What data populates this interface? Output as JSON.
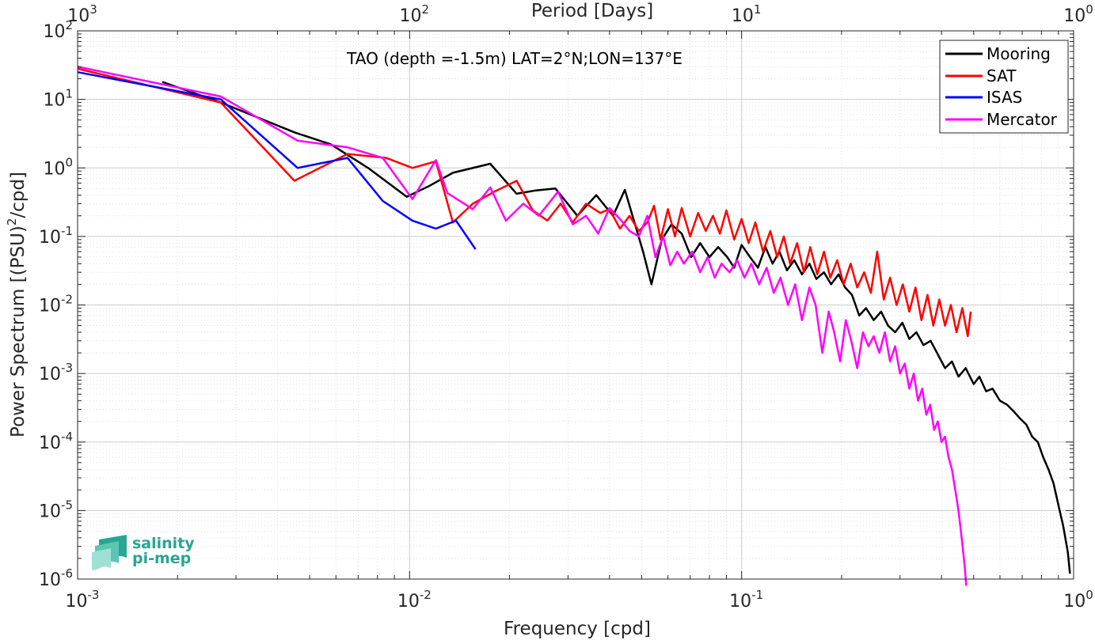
{
  "chart_data": {
    "type": "line",
    "title": "TAO (depth =-1.5m) LAT=2°N;LON=137°E",
    "xlabel": "Frequency [cpd]",
    "ylabel_parts": [
      "Power Spectrum [(PSU)",
      "2",
      "/cpd]"
    ],
    "top_xlabel": "Period [Days]",
    "xscale": "log",
    "yscale": "log",
    "xlim": [
      0.001,
      1
    ],
    "ylim": [
      1e-06,
      100
    ],
    "grid": true,
    "minor_grid": true,
    "legend_position": "top-right",
    "x_ticks": [
      {
        "base": "10",
        "exp": "-3"
      },
      {
        "base": "10",
        "exp": "-2"
      },
      {
        "base": "10",
        "exp": "-1"
      },
      {
        "base": "10",
        "exp": "0"
      }
    ],
    "top_ticks": [
      {
        "base": "10",
        "exp": "3"
      },
      {
        "base": "10",
        "exp": "2"
      },
      {
        "base": "10",
        "exp": "1"
      },
      {
        "base": "10",
        "exp": "0"
      }
    ],
    "y_ticks": [
      {
        "base": "10",
        "exp": "-6"
      },
      {
        "base": "10",
        "exp": "-5"
      },
      {
        "base": "10",
        "exp": "-4"
      },
      {
        "base": "10",
        "exp": "-3"
      },
      {
        "base": "10",
        "exp": "-2"
      },
      {
        "base": "10",
        "exp": "-1"
      },
      {
        "base": "10",
        "exp": "0"
      },
      {
        "base": "10",
        "exp": "1"
      },
      {
        "base": "10",
        "exp": "2"
      }
    ],
    "series": [
      {
        "name": "Mooring",
        "color": "#000000",
        "points": [
          [
            0.0018,
            18
          ],
          [
            0.0027,
            9
          ],
          [
            0.0045,
            3.3
          ],
          [
            0.0058,
            2.2
          ],
          [
            0.0075,
            1.0
          ],
          [
            0.0098,
            0.38
          ],
          [
            0.0115,
            0.55
          ],
          [
            0.0135,
            0.85
          ],
          [
            0.0175,
            1.15
          ],
          [
            0.021,
            0.42
          ],
          [
            0.024,
            0.47
          ],
          [
            0.0275,
            0.5
          ],
          [
            0.032,
            0.2
          ],
          [
            0.0365,
            0.4
          ],
          [
            0.041,
            0.2
          ],
          [
            0.0445,
            0.48
          ],
          [
            0.0505,
            0.06
          ],
          [
            0.0535,
            0.02
          ],
          [
            0.0575,
            0.09
          ],
          [
            0.0615,
            0.15
          ],
          [
            0.066,
            0.11
          ],
          [
            0.0705,
            0.05
          ],
          [
            0.075,
            0.08
          ],
          [
            0.08,
            0.05
          ],
          [
            0.085,
            0.07
          ],
          [
            0.0905,
            0.05
          ],
          [
            0.095,
            0.035
          ],
          [
            0.1,
            0.075
          ],
          [
            0.106,
            0.05
          ],
          [
            0.112,
            0.035
          ],
          [
            0.118,
            0.07
          ],
          [
            0.124,
            0.04
          ],
          [
            0.13,
            0.06
          ],
          [
            0.137,
            0.032
          ],
          [
            0.144,
            0.045
          ],
          [
            0.152,
            0.028
          ],
          [
            0.16,
            0.04
          ],
          [
            0.168,
            0.024
          ],
          [
            0.177,
            0.03
          ],
          [
            0.186,
            0.02
          ],
          [
            0.196,
            0.028
          ],
          [
            0.205,
            0.018
          ],
          [
            0.215,
            0.014
          ],
          [
            0.226,
            0.007
          ],
          [
            0.237,
            0.009
          ],
          [
            0.25,
            0.006
          ],
          [
            0.263,
            0.008
          ],
          [
            0.276,
            0.005
          ],
          [
            0.29,
            0.004
          ],
          [
            0.305,
            0.0055
          ],
          [
            0.32,
            0.0032
          ],
          [
            0.336,
            0.004
          ],
          [
            0.353,
            0.0026
          ],
          [
            0.371,
            0.003
          ],
          [
            0.39,
            0.0019
          ],
          [
            0.41,
            0.0012
          ],
          [
            0.43,
            0.0015
          ],
          [
            0.45,
            0.0009
          ],
          [
            0.473,
            0.0012
          ],
          [
            0.5,
            0.0007
          ],
          [
            0.52,
            0.0009
          ],
          [
            0.545,
            0.00055
          ],
          [
            0.57,
            0.0006
          ],
          [
            0.6,
            0.0004
          ],
          [
            0.63,
            0.00035
          ],
          [
            0.66,
            0.00028
          ],
          [
            0.69,
            0.00022
          ],
          [
            0.72,
            0.00018
          ],
          [
            0.75,
            0.00012
          ],
          [
            0.78,
            0.0001
          ],
          [
            0.81,
            6e-05
          ],
          [
            0.84,
            4e-05
          ],
          [
            0.87,
            2.5e-05
          ],
          [
            0.9,
            1.2e-05
          ],
          [
            0.93,
            6e-06
          ],
          [
            0.96,
            2.5e-06
          ],
          [
            0.975,
            1.2e-06
          ]
        ]
      },
      {
        "name": "SAT",
        "color": "#ff0000",
        "points": [
          [
            0.001,
            28
          ],
          [
            0.0027,
            9
          ],
          [
            0.0045,
            0.65
          ],
          [
            0.0065,
            1.6
          ],
          [
            0.0085,
            1.4
          ],
          [
            0.0102,
            1.0
          ],
          [
            0.012,
            1.25
          ],
          [
            0.0135,
            0.16
          ],
          [
            0.0155,
            0.3
          ],
          [
            0.018,
            0.45
          ],
          [
            0.021,
            0.65
          ],
          [
            0.0235,
            0.24
          ],
          [
            0.026,
            0.17
          ],
          [
            0.0285,
            0.3
          ],
          [
            0.031,
            0.16
          ],
          [
            0.034,
            0.3
          ],
          [
            0.0375,
            0.22
          ],
          [
            0.04,
            0.25
          ],
          [
            0.043,
            0.13
          ],
          [
            0.046,
            0.2
          ],
          [
            0.049,
            0.12
          ],
          [
            0.052,
            0.16
          ],
          [
            0.0545,
            0.28
          ],
          [
            0.057,
            0.09
          ],
          [
            0.06,
            0.25
          ],
          [
            0.063,
            0.1
          ],
          [
            0.066,
            0.26
          ],
          [
            0.07,
            0.1
          ],
          [
            0.074,
            0.22
          ],
          [
            0.078,
            0.12
          ],
          [
            0.082,
            0.2
          ],
          [
            0.086,
            0.11
          ],
          [
            0.09,
            0.24
          ],
          [
            0.095,
            0.09
          ],
          [
            0.1,
            0.18
          ],
          [
            0.105,
            0.08
          ],
          [
            0.11,
            0.16
          ],
          [
            0.116,
            0.06
          ],
          [
            0.122,
            0.12
          ],
          [
            0.128,
            0.05
          ],
          [
            0.134,
            0.1
          ],
          [
            0.14,
            0.04
          ],
          [
            0.147,
            0.08
          ],
          [
            0.154,
            0.03
          ],
          [
            0.161,
            0.07
          ],
          [
            0.169,
            0.028
          ],
          [
            0.177,
            0.06
          ],
          [
            0.185,
            0.025
          ],
          [
            0.194,
            0.045
          ],
          [
            0.203,
            0.02
          ],
          [
            0.213,
            0.04
          ],
          [
            0.223,
            0.018
          ],
          [
            0.234,
            0.03
          ],
          [
            0.245,
            0.015
          ],
          [
            0.256,
            0.06
          ],
          [
            0.268,
            0.012
          ],
          [
            0.28,
            0.025
          ],
          [
            0.293,
            0.01
          ],
          [
            0.306,
            0.02
          ],
          [
            0.32,
            0.008
          ],
          [
            0.334,
            0.018
          ],
          [
            0.348,
            0.006
          ],
          [
            0.363,
            0.014
          ],
          [
            0.378,
            0.005
          ],
          [
            0.394,
            0.012
          ],
          [
            0.41,
            0.005
          ],
          [
            0.427,
            0.01
          ],
          [
            0.444,
            0.004
          ],
          [
            0.462,
            0.009
          ],
          [
            0.48,
            0.0035
          ],
          [
            0.49,
            0.008
          ]
        ]
      },
      {
        "name": "ISAS",
        "color": "#0000ff",
        "points": [
          [
            0.001,
            25
          ],
          [
            0.0027,
            10
          ],
          [
            0.0046,
            1.0
          ],
          [
            0.0065,
            1.4
          ],
          [
            0.0083,
            0.33
          ],
          [
            0.0102,
            0.17
          ],
          [
            0.012,
            0.13
          ],
          [
            0.0138,
            0.17
          ],
          [
            0.0158,
            0.065
          ]
        ]
      },
      {
        "name": "Mercator",
        "color": "#ff00ff",
        "points": [
          [
            0.001,
            30
          ],
          [
            0.0027,
            11
          ],
          [
            0.0046,
            2.5
          ],
          [
            0.0065,
            2.0
          ],
          [
            0.0083,
            1.4
          ],
          [
            0.0102,
            0.35
          ],
          [
            0.012,
            1.3
          ],
          [
            0.013,
            0.43
          ],
          [
            0.0155,
            0.25
          ],
          [
            0.0175,
            0.52
          ],
          [
            0.0195,
            0.17
          ],
          [
            0.022,
            0.3
          ],
          [
            0.0245,
            0.2
          ],
          [
            0.028,
            0.45
          ],
          [
            0.031,
            0.15
          ],
          [
            0.034,
            0.2
          ],
          [
            0.037,
            0.11
          ],
          [
            0.04,
            0.26
          ],
          [
            0.043,
            0.18
          ],
          [
            0.046,
            0.12
          ],
          [
            0.049,
            0.1
          ],
          [
            0.052,
            0.2
          ],
          [
            0.055,
            0.05
          ],
          [
            0.058,
            0.1
          ],
          [
            0.061,
            0.038
          ],
          [
            0.064,
            0.06
          ],
          [
            0.067,
            0.04
          ],
          [
            0.071,
            0.06
          ],
          [
            0.075,
            0.03
          ],
          [
            0.079,
            0.05
          ],
          [
            0.083,
            0.025
          ],
          [
            0.087,
            0.04
          ],
          [
            0.092,
            0.03
          ],
          [
            0.097,
            0.045
          ],
          [
            0.102,
            0.025
          ],
          [
            0.107,
            0.04
          ],
          [
            0.113,
            0.02
          ],
          [
            0.119,
            0.035
          ],
          [
            0.125,
            0.015
          ],
          [
            0.131,
            0.025
          ],
          [
            0.138,
            0.01
          ],
          [
            0.145,
            0.02
          ],
          [
            0.152,
            0.006
          ],
          [
            0.16,
            0.018
          ],
          [
            0.167,
            0.01
          ],
          [
            0.175,
            0.002
          ],
          [
            0.183,
            0.008
          ],
          [
            0.19,
            0.004
          ],
          [
            0.198,
            0.0015
          ],
          [
            0.206,
            0.006
          ],
          [
            0.214,
            0.003
          ],
          [
            0.223,
            0.0012
          ],
          [
            0.232,
            0.004
          ],
          [
            0.241,
            0.0025
          ],
          [
            0.25,
            0.0035
          ],
          [
            0.26,
            0.002
          ],
          [
            0.27,
            0.004
          ],
          [
            0.28,
            0.0015
          ],
          [
            0.29,
            0.0025
          ],
          [
            0.3,
            0.001
          ],
          [
            0.31,
            0.0014
          ],
          [
            0.32,
            0.0006
          ],
          [
            0.33,
            0.001
          ],
          [
            0.34,
            0.0004
          ],
          [
            0.35,
            0.0006
          ],
          [
            0.36,
            0.00025
          ],
          [
            0.37,
            0.00035
          ],
          [
            0.38,
            0.00015
          ],
          [
            0.39,
            0.0002
          ],
          [
            0.4,
            0.0001
          ],
          [
            0.41,
            0.00012
          ],
          [
            0.42,
            6e-05
          ],
          [
            0.43,
            4e-05
          ],
          [
            0.44,
            2e-05
          ],
          [
            0.45,
            1e-05
          ],
          [
            0.46,
            4e-06
          ],
          [
            0.47,
            1.5e-06
          ],
          [
            0.475,
            8e-07
          ]
        ]
      }
    ]
  },
  "logo": {
    "line1": "salinity",
    "line2": "pi-mep"
  }
}
